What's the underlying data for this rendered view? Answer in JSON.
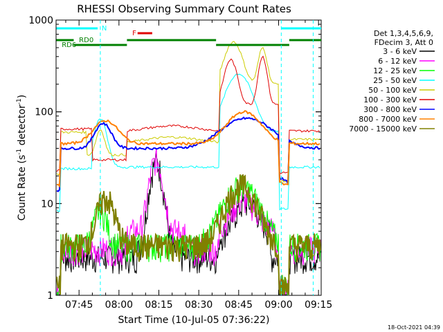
{
  "chart_data": {
    "type": "line",
    "title": "RHESSI Observing Summary Count Rates",
    "xlabel": "Start Time (10-Jul-05 07:36:22)",
    "ylabel_main": "Count Rate (s",
    "ylabel_sup1": "-1",
    "ylabel_mid": " detector",
    "ylabel_sup2": "-1",
    "ylabel_end": ")",
    "y_scale": "log",
    "ylim": [
      1,
      1000
    ],
    "xlim": [
      "07:36:22",
      "09:16:00"
    ],
    "x_ticks": [
      "07:45",
      "08:00",
      "08:15",
      "08:30",
      "08:45",
      "09:00",
      "09:15"
    ],
    "y_ticks": [
      "1",
      "10",
      "100",
      "1000"
    ],
    "timestamp": "18-Oct-2021 04:39",
    "legend": {
      "placement": "top-right",
      "header": [
        "Det 1,3,4,5,6,9,",
        "FDecim 3, Att 0"
      ]
    },
    "series": [
      {
        "name": "3 - 6 keV",
        "color": "#000000"
      },
      {
        "name": "6 - 12 keV",
        "color": "#ff00ff"
      },
      {
        "name": "12 - 25 keV",
        "color": "#00ff00"
      },
      {
        "name": "25 - 50 keV",
        "color": "#00ffff"
      },
      {
        "name": "50 - 100 keV",
        "color": "#cccc00"
      },
      {
        "name": "100 - 300 keV",
        "color": "#e00000"
      },
      {
        "name": "300 - 800 keV",
        "color": "#0000ff"
      },
      {
        "name": "800 - 7000 keV",
        "color": "#ff8000"
      },
      {
        "name": "7000 - 15000 keV",
        "color": "#808000"
      }
    ],
    "flags": [
      {
        "label": "N",
        "color": "#00ffff"
      },
      {
        "label": "F",
        "color": "#e00000"
      },
      {
        "label": "RD0",
        "color": "#008000"
      },
      {
        "label": "RD6",
        "color": "#008000"
      }
    ]
  }
}
